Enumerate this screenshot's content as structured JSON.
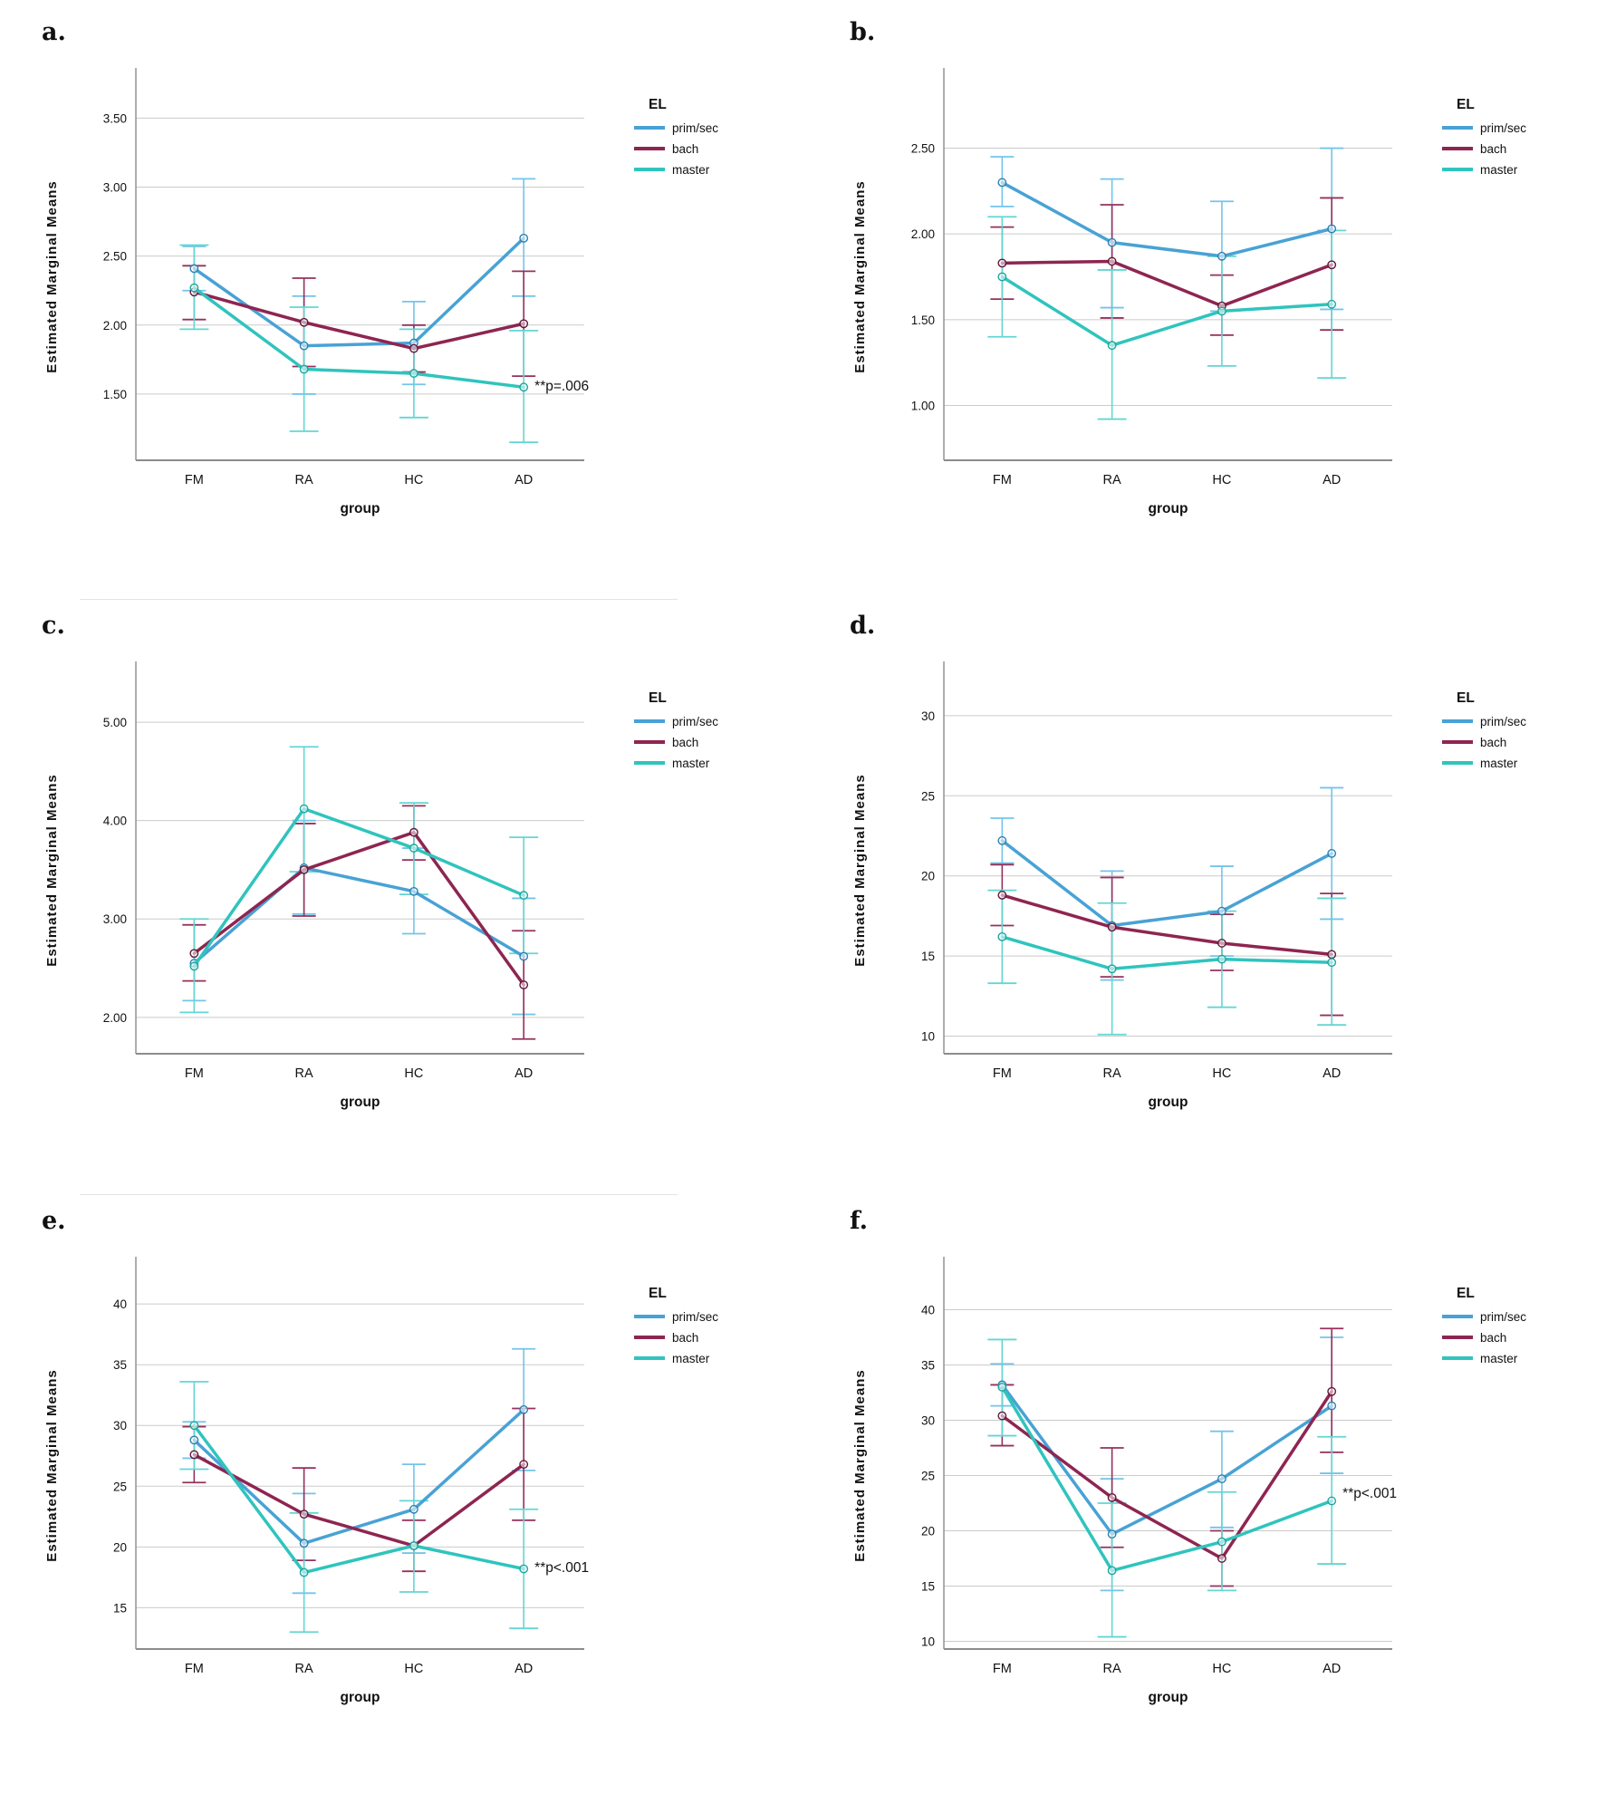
{
  "figure": {
    "background": "#ffffff"
  },
  "axes_shared": {
    "y_title": "Estimated Marginal Means",
    "x_title": "group",
    "categories": [
      "FM",
      "RA",
      "HC",
      "AD"
    ]
  },
  "legend": {
    "title": "EL",
    "entries": [
      {
        "label": "prim/sec"
      },
      {
        "label": "bach"
      },
      {
        "label": "master"
      }
    ]
  },
  "series_styles": [
    {
      "name": "prim/sec",
      "line": "#48a2d5",
      "error": "#74c4e9",
      "marker": "#2c7fb0"
    },
    {
      "name": "bach",
      "line": "#8e2551",
      "error": "#96305c",
      "marker": "#5f1736"
    },
    {
      "name": "master",
      "line": "#2fc4bd",
      "error": "#63d6d4",
      "marker": "#1ca59d"
    }
  ],
  "grid_color": "#cbcbcb",
  "axis_color": "#8c8c8c",
  "chart_data": [
    {
      "letter": "a.",
      "type": "line",
      "y_domain": [
        1.02,
        3.68
      ],
      "y_ticks": [
        {
          "value": 1.5,
          "label": "1.50"
        },
        {
          "value": 2.0,
          "label": "2.00"
        },
        {
          "value": 2.5,
          "label": "2.50"
        },
        {
          "value": 3.0,
          "label": "3.00"
        },
        {
          "value": 3.5,
          "label": "3.50"
        }
      ],
      "series": [
        {
          "name": "prim/sec",
          "values": [
            2.41,
            1.85,
            1.87,
            2.63
          ],
          "ci_lo": [
            2.25,
            1.5,
            1.57,
            2.21
          ],
          "ci_hi": [
            2.57,
            2.21,
            2.17,
            3.06
          ]
        },
        {
          "name": "bach",
          "values": [
            2.24,
            2.02,
            1.83,
            2.01
          ],
          "ci_lo": [
            2.04,
            1.7,
            1.66,
            1.63
          ],
          "ci_hi": [
            2.43,
            2.34,
            2.0,
            2.39
          ]
        },
        {
          "name": "master",
          "values": [
            2.27,
            1.68,
            1.65,
            1.55
          ],
          "ci_lo": [
            1.97,
            1.23,
            1.33,
            1.15
          ],
          "ci_hi": [
            2.58,
            2.13,
            1.97,
            1.96
          ]
        }
      ],
      "annotation": {
        "text": "**p=.006",
        "at_category": "AD",
        "y": 1.56
      }
    },
    {
      "letter": "b.",
      "type": "line",
      "y_domain": [
        0.68,
        2.82
      ],
      "y_ticks": [
        {
          "value": 1.0,
          "label": "1.00"
        },
        {
          "value": 1.5,
          "label": "1.50"
        },
        {
          "value": 2.0,
          "label": "2.00"
        },
        {
          "value": 2.5,
          "label": "2.50"
        }
      ],
      "series": [
        {
          "name": "prim/sec",
          "values": [
            2.3,
            1.95,
            1.87,
            2.03
          ],
          "ci_lo": [
            2.16,
            1.57,
            1.55,
            1.56
          ],
          "ci_hi": [
            2.45,
            2.32,
            2.19,
            2.5
          ]
        },
        {
          "name": "bach",
          "values": [
            1.83,
            1.84,
            1.58,
            1.82
          ],
          "ci_lo": [
            1.62,
            1.51,
            1.41,
            1.44
          ],
          "ci_hi": [
            2.04,
            2.17,
            1.76,
            2.21
          ]
        },
        {
          "name": "master",
          "values": [
            1.75,
            1.35,
            1.55,
            1.59
          ],
          "ci_lo": [
            1.4,
            0.92,
            1.23,
            1.16
          ],
          "ci_hi": [
            2.1,
            1.79,
            1.87,
            2.02
          ]
        }
      ],
      "annotation": null
    },
    {
      "letter": "c.",
      "type": "line",
      "y_domain": [
        1.63,
        5.36
      ],
      "y_ticks": [
        {
          "value": 2.0,
          "label": "2.00"
        },
        {
          "value": 3.0,
          "label": "3.00"
        },
        {
          "value": 4.0,
          "label": "4.00"
        },
        {
          "value": 5.0,
          "label": "5.00"
        }
      ],
      "series": [
        {
          "name": "prim/sec",
          "values": [
            2.55,
            3.52,
            3.28,
            2.62
          ],
          "ci_lo": [
            2.17,
            3.05,
            2.85,
            2.03
          ],
          "ci_hi": [
            2.94,
            4.0,
            3.72,
            3.21
          ]
        },
        {
          "name": "bach",
          "values": [
            2.65,
            3.5,
            3.88,
            2.33
          ],
          "ci_lo": [
            2.37,
            3.03,
            3.6,
            1.78
          ],
          "ci_hi": [
            2.94,
            3.97,
            4.15,
            2.88
          ]
        },
        {
          "name": "master",
          "values": [
            2.52,
            4.12,
            3.72,
            3.24
          ],
          "ci_lo": [
            2.05,
            3.48,
            3.25,
            2.65
          ],
          "ci_hi": [
            3.0,
            4.75,
            4.18,
            3.83
          ]
        }
      ],
      "annotation": null
    },
    {
      "letter": "d.",
      "type": "line",
      "y_domain": [
        8.9,
        31.8
      ],
      "y_ticks": [
        {
          "value": 10,
          "label": "10"
        },
        {
          "value": 15,
          "label": "15"
        },
        {
          "value": 20,
          "label": "20"
        },
        {
          "value": 25,
          "label": "25"
        },
        {
          "value": 30,
          "label": "30"
        }
      ],
      "series": [
        {
          "name": "prim/sec",
          "values": [
            22.2,
            16.9,
            17.8,
            21.4
          ],
          "ci_lo": [
            20.8,
            13.5,
            15.0,
            17.3
          ],
          "ci_hi": [
            23.6,
            20.3,
            20.6,
            25.5
          ]
        },
        {
          "name": "bach",
          "values": [
            18.8,
            16.8,
            15.8,
            15.1
          ],
          "ci_lo": [
            16.9,
            13.7,
            14.1,
            11.3
          ],
          "ci_hi": [
            20.7,
            19.9,
            17.6,
            18.9
          ]
        },
        {
          "name": "master",
          "values": [
            16.2,
            14.2,
            14.8,
            14.6
          ],
          "ci_lo": [
            13.3,
            10.1,
            11.8,
            10.7
          ],
          "ci_hi": [
            19.1,
            18.3,
            17.8,
            18.6
          ]
        }
      ],
      "annotation": null
    },
    {
      "letter": "e.",
      "type": "line",
      "y_domain": [
        11.6,
        41.8
      ],
      "y_ticks": [
        {
          "value": 15,
          "label": "15"
        },
        {
          "value": 20,
          "label": "20"
        },
        {
          "value": 25,
          "label": "25"
        },
        {
          "value": 30,
          "label": "30"
        },
        {
          "value": 35,
          "label": "35"
        },
        {
          "value": 40,
          "label": "40"
        }
      ],
      "series": [
        {
          "name": "prim/sec",
          "values": [
            28.8,
            20.3,
            23.1,
            31.3
          ],
          "ci_lo": [
            27.3,
            16.2,
            19.5,
            26.3
          ],
          "ci_hi": [
            30.3,
            24.4,
            26.8,
            36.3
          ]
        },
        {
          "name": "bach",
          "values": [
            27.6,
            22.7,
            20.1,
            26.8
          ],
          "ci_lo": [
            25.3,
            18.9,
            18.0,
            22.2
          ],
          "ci_hi": [
            29.9,
            26.5,
            22.2,
            31.4
          ]
        },
        {
          "name": "master",
          "values": [
            30.0,
            17.9,
            20.1,
            18.2
          ],
          "ci_lo": [
            26.4,
            13.0,
            16.3,
            13.3
          ],
          "ci_hi": [
            33.6,
            22.8,
            23.8,
            23.1
          ]
        }
      ],
      "annotation": {
        "text": "**p<.001",
        "at_category": "AD",
        "y": 18.3
      }
    },
    {
      "letter": "f.",
      "type": "line",
      "y_domain": [
        9.3,
        42.5
      ],
      "y_ticks": [
        {
          "value": 10,
          "label": "10"
        },
        {
          "value": 15,
          "label": "15"
        },
        {
          "value": 20,
          "label": "20"
        },
        {
          "value": 25,
          "label": "25"
        },
        {
          "value": 30,
          "label": "30"
        },
        {
          "value": 35,
          "label": "35"
        },
        {
          "value": 40,
          "label": "40"
        }
      ],
      "series": [
        {
          "name": "prim/sec",
          "values": [
            33.2,
            19.7,
            24.7,
            31.3
          ],
          "ci_lo": [
            31.3,
            14.6,
            20.3,
            25.2
          ],
          "ci_hi": [
            35.1,
            24.7,
            29.0,
            37.5
          ]
        },
        {
          "name": "bach",
          "values": [
            30.4,
            23.0,
            17.5,
            32.6
          ],
          "ci_lo": [
            27.7,
            18.5,
            15.0,
            27.1
          ],
          "ci_hi": [
            33.2,
            27.5,
            20.0,
            38.3
          ]
        },
        {
          "name": "master",
          "values": [
            33.0,
            16.4,
            19.0,
            22.7
          ],
          "ci_lo": [
            28.6,
            10.4,
            14.6,
            17.0
          ],
          "ci_hi": [
            37.3,
            22.5,
            23.5,
            28.5
          ]
        }
      ],
      "annotation": {
        "text": "**p<.001",
        "at_category": "AD",
        "y": 23.4
      }
    }
  ]
}
